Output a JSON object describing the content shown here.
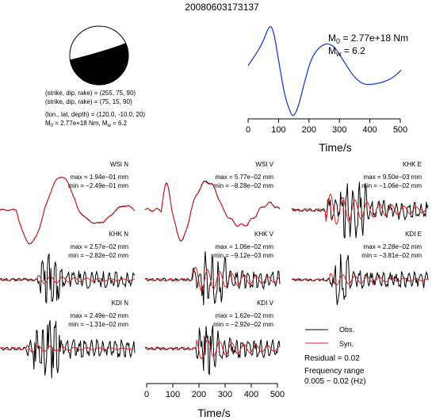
{
  "figure": {
    "title": "20080603173137",
    "colors": {
      "observed": "#000000",
      "synthetic": "#e41a1c",
      "stf": "#1f3fd6",
      "axis": "#000000"
    }
  },
  "mechanism": {
    "lines": [
      "(strike, dip, rake) = (255, 75, 90)",
      "(strike, dip, rake) = (75, 15, 90)",
      "(lon., lat, depth) = (120.0, -10.0, 20)"
    ],
    "m0_label": "M",
    "m0_sub": "0",
    "m0_value": " = 2.77e+18 Nm, M",
    "mw_sub": "w",
    "mw_value": " = 6.2"
  },
  "stf": {
    "m0_label": "M",
    "m0_sub": "0",
    "m0_value": " = 2.77e+18 Nm",
    "mw_label": "M",
    "mw_sub": "w",
    "mw_value": " = 6.2",
    "xlabel": "Time/s",
    "ticks": [
      "0",
      "100",
      "200",
      "300",
      "400",
      "500"
    ]
  },
  "waveforms": {
    "xlabel": "Time/s",
    "ticks": [
      "0",
      "100",
      "200",
      "300",
      "400",
      "500"
    ]
  },
  "legend": {
    "obs": "Obs.",
    "syn": "Syn.",
    "residual": "Residual = 0.02",
    "freq_title": "Frequency range",
    "freq_value": "0.005 − 0.02 (Hz)"
  },
  "chart_data": [
    {
      "type": "line",
      "panel": "source time function",
      "xlabel": "Time/s",
      "xlim": [
        0,
        510
      ],
      "x": [
        0,
        30,
        50,
        65,
        75,
        85,
        100,
        120,
        140,
        150,
        165,
        185,
        205,
        225,
        245,
        265,
        285,
        305,
        325,
        350,
        380,
        410,
        440,
        470,
        490,
        505
      ],
      "y": [
        0.55,
        0.7,
        0.82,
        0.96,
        1.0,
        0.92,
        0.62,
        0.22,
        0.02,
        -0.02,
        0.08,
        0.35,
        0.6,
        0.72,
        0.78,
        0.8,
        0.76,
        0.66,
        0.55,
        0.42,
        0.34,
        0.34,
        0.36,
        0.4,
        0.45,
        0.5
      ]
    },
    {
      "type": "line",
      "panel": "waveform fits",
      "xlabel": "Time/s",
      "xlim": [
        0,
        510
      ],
      "stations": [
        {
          "label": "WSI N",
          "max": "max = 1.94e−01 mm",
          "min": "min = −2.49e−01 mm"
        },
        {
          "label": "WSI V",
          "max": "max = 5.77e−02 mm",
          "min": "min = −8.28e−02 mm"
        },
        {
          "label": "KHK E",
          "max": "max = 9.50e−03 mm",
          "min": "min = −1.06e−02 mm"
        },
        {
          "label": "KHK N",
          "max": "max = 2.57e−02 mm",
          "min": "min = −2.82e−02 mm"
        },
        {
          "label": "KHK V",
          "max": "max = 1.06e−02 mm",
          "min": "min = −9.12e−03 mm"
        },
        {
          "label": "KDI E",
          "max": "max = 2.28e−02 mm",
          "min": "min = −3.81e−02 mm"
        },
        {
          "label": "KDI N",
          "max": "max = 2.49e−02 mm",
          "min": "min = −1.31e−02 mm"
        },
        {
          "label": "KDI V",
          "max": "max = 1.62e−02 mm",
          "min": "min = −2.92e−02 mm"
        }
      ]
    }
  ]
}
